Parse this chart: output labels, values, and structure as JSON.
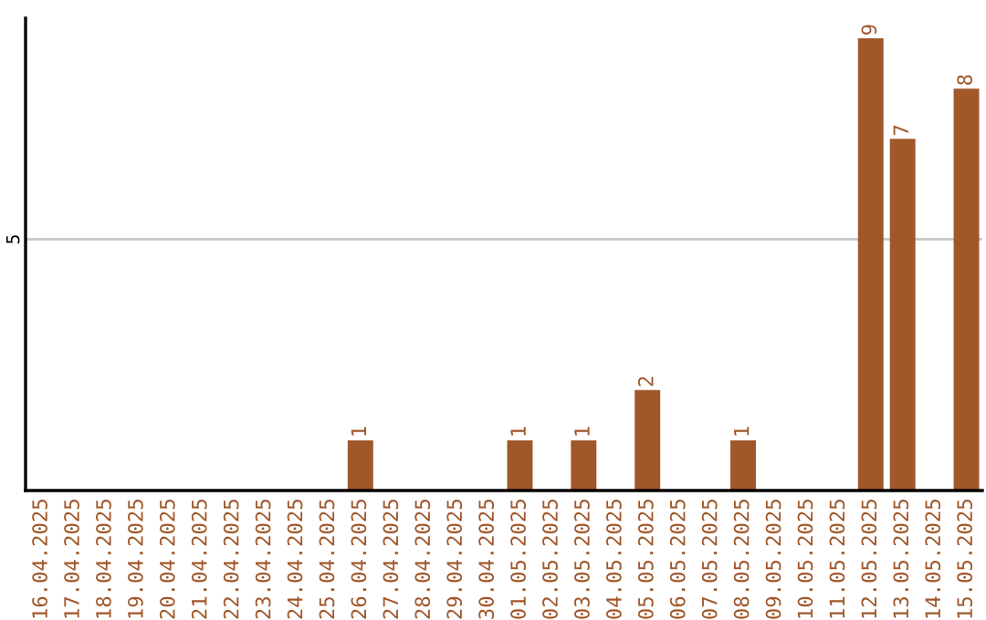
{
  "chart_data": {
    "type": "bar",
    "categories": [
      "16.04.2025",
      "17.04.2025",
      "18.04.2025",
      "19.04.2025",
      "20.04.2025",
      "21.04.2025",
      "22.04.2025",
      "23.04.2025",
      "24.04.2025",
      "25.04.2025",
      "26.04.2025",
      "27.04.2025",
      "28.04.2025",
      "29.04.2025",
      "30.04.2025",
      "01.05.2025",
      "02.05.2025",
      "03.05.2025",
      "04.05.2025",
      "05.05.2025",
      "06.05.2025",
      "07.05.2025",
      "08.05.2025",
      "09.05.2025",
      "10.05.2025",
      "11.05.2025",
      "12.05.2025",
      "13.05.2025",
      "14.05.2025",
      "15.05.2025"
    ],
    "values": [
      0,
      0,
      0,
      0,
      0,
      0,
      0,
      0,
      0,
      0,
      1,
      0,
      0,
      0,
      0,
      1,
      0,
      1,
      0,
      2,
      0,
      0,
      1,
      0,
      0,
      0,
      9,
      7,
      0,
      8
    ],
    "value_labels": [
      null,
      null,
      null,
      null,
      null,
      null,
      null,
      null,
      null,
      null,
      "1",
      null,
      null,
      null,
      null,
      "1",
      null,
      "1",
      null,
      "2",
      null,
      null,
      "1",
      null,
      null,
      null,
      "9",
      "7",
      null,
      "8"
    ],
    "color": "#a0572a",
    "ylim": [
      0,
      9.4
    ],
    "yticks": [
      5
    ],
    "grid": "y"
  }
}
